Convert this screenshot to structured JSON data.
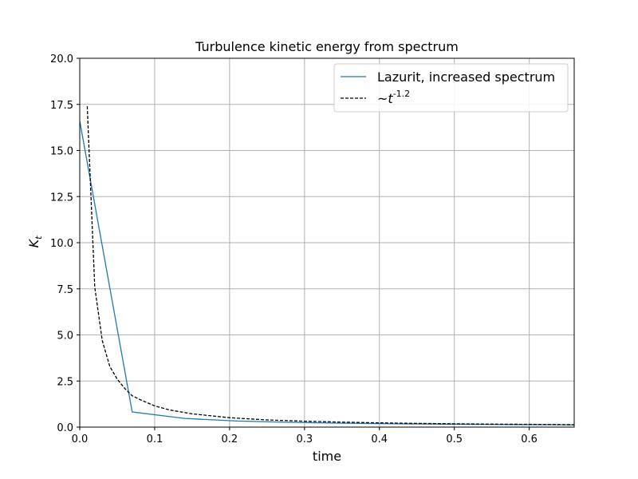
{
  "chart_data": {
    "type": "line",
    "title": "Turbulence kinetic energy from spectrum",
    "xlabel": "time",
    "ylabel": "K_t",
    "xlim": [
      0.0,
      0.66
    ],
    "ylim": [
      0.0,
      20.0
    ],
    "xticks": [
      "0.0",
      "0.1",
      "0.2",
      "0.3",
      "0.4",
      "0.5",
      "0.6"
    ],
    "yticks": [
      "0.0",
      "2.5",
      "5.0",
      "7.5",
      "10.0",
      "12.5",
      "15.0",
      "17.5",
      "20.0"
    ],
    "grid": true,
    "legend_position": "top-right",
    "series": [
      {
        "name": "Lazurit, increased spectrum",
        "color": "#1f77b4",
        "style": "solid",
        "x": [
          0.0,
          0.07,
          0.14,
          0.21,
          0.28,
          0.35,
          0.42,
          0.49,
          0.56,
          0.63,
          0.66
        ],
        "y": [
          16.6,
          0.82,
          0.47,
          0.33,
          0.26,
          0.21,
          0.18,
          0.16,
          0.14,
          0.13,
          0.12
        ]
      },
      {
        "name": "~t^{-1.2}",
        "color": "#000000",
        "style": "dashed",
        "x": [
          0.01,
          0.02,
          0.03,
          0.04,
          0.05,
          0.06,
          0.07,
          0.08,
          0.1,
          0.12,
          0.15,
          0.2,
          0.25,
          0.3,
          0.35,
          0.4,
          0.45,
          0.5,
          0.55,
          0.6,
          0.66
        ],
        "y": [
          17.4,
          7.6,
          4.7,
          3.3,
          2.6,
          2.1,
          1.7,
          1.5,
          1.15,
          0.93,
          0.72,
          0.51,
          0.39,
          0.32,
          0.27,
          0.23,
          0.2,
          0.18,
          0.16,
          0.15,
          0.13
        ]
      }
    ]
  }
}
